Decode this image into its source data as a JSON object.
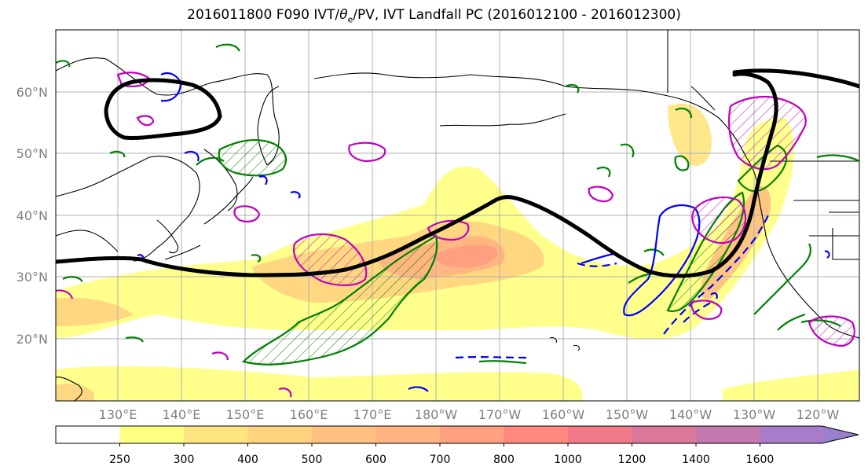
{
  "title": {
    "prefix": "2016011800 F090 IVT/",
    "theta": "θ",
    "theta_sub": "e",
    "suffix": "/PV, IVT Landfall PC (2016012100 - 2016012300)"
  },
  "lat_labels": [
    "60°N",
    "50°N",
    "40°N",
    "30°N",
    "20°N"
  ],
  "lon_labels": [
    "130°E",
    "140°E",
    "150°E",
    "160°E",
    "170°E",
    "180°W",
    "170°W",
    "160°W",
    "150°W",
    "140°W",
    "130°W",
    "120°W"
  ],
  "colorbar": {
    "ticks": [
      "250",
      "300",
      "400",
      "500",
      "600",
      "700",
      "800",
      "1000",
      "1200",
      "1400",
      "1600"
    ],
    "colors": [
      "#ffffff",
      "#ffff80",
      "#ffe680",
      "#ffd380",
      "#ffc080",
      "#ffb380",
      "#ffa080",
      "#ff8880",
      "#f07a88",
      "#d9789a",
      "#c27ab0",
      "#a87cc8",
      "#9a80cc"
    ]
  },
  "legend_colors": {
    "pv_contour": "#0000ff",
    "theta_contour": "#008000",
    "ivt_contour": "#c000c0",
    "landfall_pc": "#000000"
  }
}
